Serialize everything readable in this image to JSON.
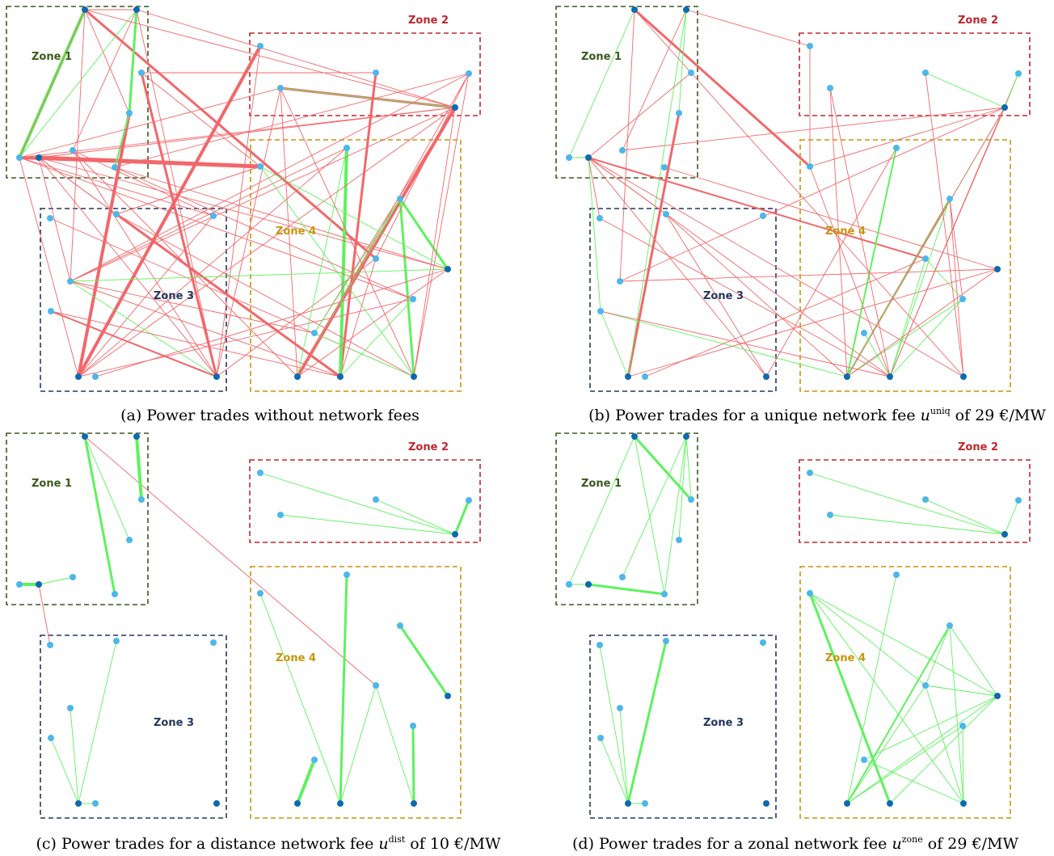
{
  "colors": {
    "zone1": "#3a5a1e",
    "zone2": "#c0262d",
    "zone3": "#25365f",
    "zone4": "#c8940a",
    "trade_red": "#f2676b",
    "trade_green": "#5ef25e",
    "node_dark": "#0e6ab0",
    "node_light": "#4db7ea"
  },
  "zone_labels": [
    "Zone 1",
    "Zone 2",
    "Zone 3",
    "Zone 4"
  ],
  "panels": [
    {
      "caption_text": "(a) Power trades without network fees",
      "trade_counts": {
        "red": 72,
        "green": 18
      }
    },
    {
      "caption_prefix": "(b) Power trades for a unique network fee ",
      "caption_symbol": "u",
      "caption_superscript": "uniq",
      "caption_suffix": " of 29 €/MW",
      "trade_counts": {
        "red": 38,
        "green": 17
      }
    },
    {
      "caption_prefix": "(c) Power trades for a distance network fee ",
      "caption_symbol": "u",
      "caption_superscript": "dist",
      "caption_suffix": " of 10 €/MW",
      "trade_counts": {
        "red": 2,
        "green": 21
      }
    },
    {
      "caption_prefix": "(d) Power trades for a zonal network fee ",
      "caption_symbol": "u",
      "caption_superscript": "zone",
      "caption_suffix": " of 29 €/MW",
      "trade_counts": {
        "red": 0,
        "green": 36
      }
    }
  ]
}
